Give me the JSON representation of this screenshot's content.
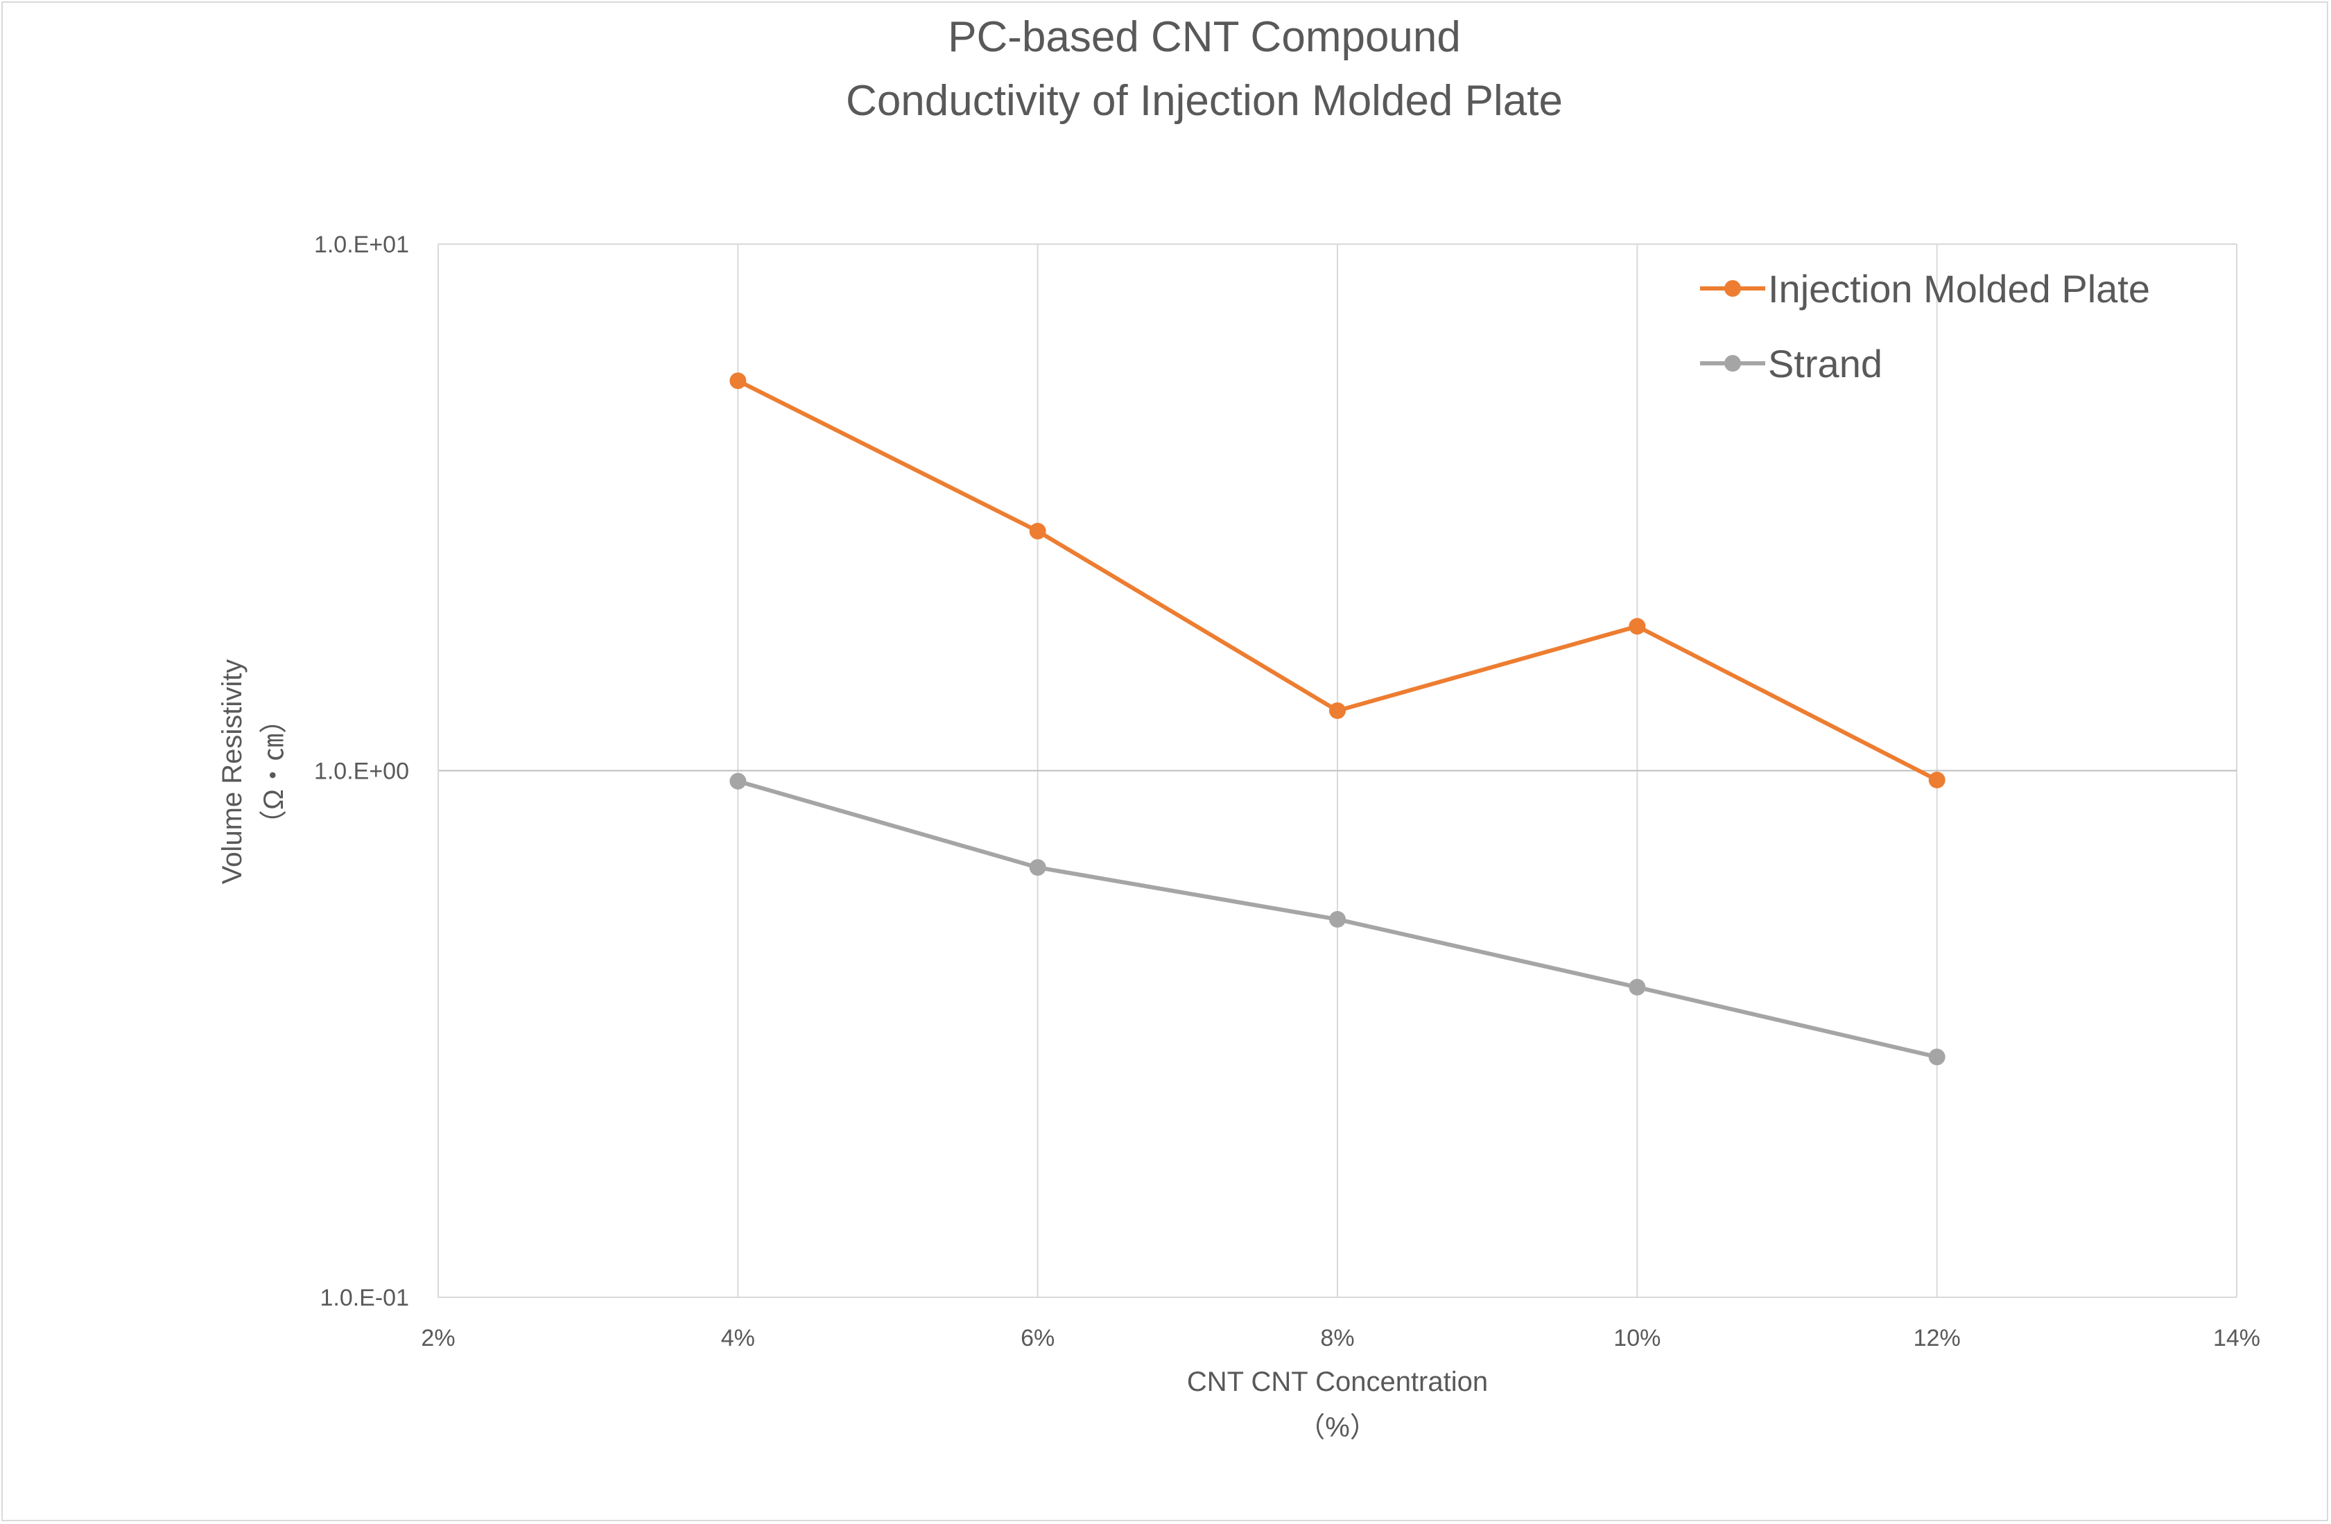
{
  "chart_data": {
    "type": "line",
    "title": [
      "PC-based CNT Compound",
      "Conductivity of Injection Molded Plate"
    ],
    "xlabel": [
      "CNT CNT Concentration",
      "（%）"
    ],
    "ylabel": [
      "Volume Resistivity",
      "（Ω・㎝）"
    ],
    "x_scale": "linear",
    "y_scale": "log",
    "xlim": [
      2,
      14
    ],
    "ylim": [
      0.1,
      10
    ],
    "x_ticks": [
      2,
      4,
      6,
      8,
      10,
      12,
      14
    ],
    "x_tick_labels": [
      "2%",
      "4%",
      "6%",
      "8%",
      "10%",
      "12%",
      "14%"
    ],
    "y_ticks": [
      0.1,
      1,
      10
    ],
    "y_tick_labels": [
      "1.0.E-01",
      "1.0.E+00",
      "1.0.E+01"
    ],
    "grid": true,
    "legend_position": "top-right",
    "series": [
      {
        "name": "Injection Molded Plate",
        "color": "#ed7d31",
        "x": [
          4,
          6,
          8,
          10,
          12
        ],
        "y": [
          5.5,
          2.85,
          1.3,
          1.88,
          0.96
        ]
      },
      {
        "name": "Strand",
        "color": "#a5a5a5",
        "x": [
          4,
          6,
          8,
          10,
          12
        ],
        "y": [
          0.955,
          0.655,
          0.522,
          0.388,
          0.286
        ]
      }
    ]
  }
}
